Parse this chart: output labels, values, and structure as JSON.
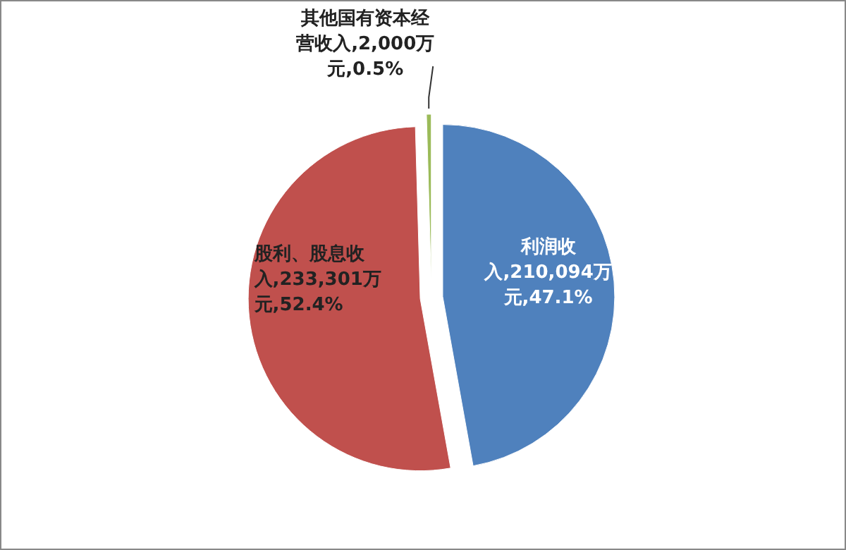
{
  "chart_data": {
    "type": "pie",
    "categories": [
      "利润收入",
      "股利、股息收入",
      "其他国有资本经营收入"
    ],
    "values": [
      210094,
      233301,
      2000
    ],
    "value_labels": [
      "210,094万元,47.1%",
      "233,301万元,52.4%",
      "2,000万元,0.5%"
    ],
    "colors": [
      "#4f81bd",
      "#c0504d",
      "#9bbb59"
    ]
  }
}
